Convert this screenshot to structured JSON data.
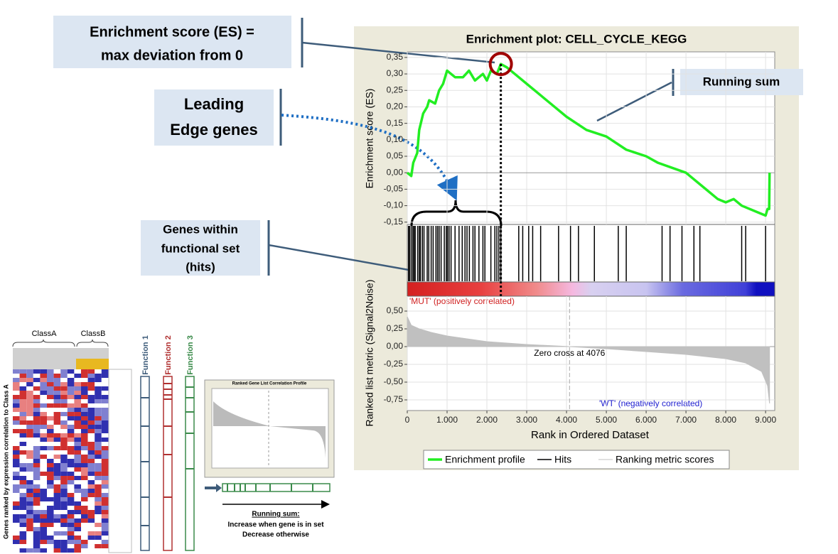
{
  "annotations": {
    "es_box": [
      "Enrichment score (ES) =",
      "max deviation from 0"
    ],
    "leading_edge_box": [
      "Leading",
      "Edge genes"
    ],
    "hits_box": [
      "Genes within",
      "functional set",
      "(hits)"
    ],
    "running_sum_box": "Running sum"
  },
  "chart_data": {
    "type": "line",
    "title": "Enrichment plot: CELL_CYCLE_KEGG",
    "x_label": "Rank in Ordered Dataset",
    "xlim": [
      0,
      9230
    ],
    "xticks": [
      0,
      {
        "value": 1000,
        "label": "1.000"
      },
      {
        "value": 2000,
        "label": "2.000"
      },
      {
        "value": 3000,
        "label": "3.000"
      },
      {
        "value": 4000,
        "label": "4.000"
      },
      {
        "value": 5000,
        "label": "5.000"
      },
      {
        "value": 6000,
        "label": "6.000"
      },
      {
        "value": 7000,
        "label": "7.000"
      },
      {
        "value": 8000,
        "label": "8.000"
      },
      {
        "value": 9000,
        "label": "9.000"
      }
    ],
    "grid": true,
    "es_panel": {
      "y_label": "Enrichment score (ES)",
      "ylim": [
        -0.157,
        0.367
      ],
      "yticks": [
        {
          "value": 0.35,
          "label": "0,35"
        },
        {
          "value": 0.3,
          "label": "0,30"
        },
        {
          "value": 0.25,
          "label": "0,25"
        },
        {
          "value": 0.2,
          "label": "0,20"
        },
        {
          "value": 0.15,
          "label": "0,15"
        },
        {
          "value": 0.1,
          "label": "0,10"
        },
        {
          "value": 0.05,
          "label": "0,05"
        },
        {
          "value": 0,
          "label": "0,00"
        },
        {
          "value": -0.05,
          "label": "-0,05"
        },
        {
          "value": -0.1,
          "label": "-0,10"
        },
        {
          "value": -0.15,
          "label": "-0,15"
        }
      ],
      "series": [
        {
          "name": "Enrichment profile",
          "color": "#22ee22",
          "x": [
            0,
            100,
            150,
            250,
            300,
            400,
            500,
            550,
            700,
            800,
            900,
            1000,
            1200,
            1400,
            1550,
            1700,
            1900,
            2000,
            2100,
            2250,
            2350,
            2500,
            2700,
            3000,
            3500,
            4000,
            4500,
            5000,
            5500,
            6000,
            6300,
            7000,
            7500,
            7800,
            8000,
            8200,
            8400,
            8800,
            9000,
            9050,
            9090,
            9100
          ],
          "values": [
            0,
            -0.01,
            0.03,
            0.06,
            0.13,
            0.18,
            0.2,
            0.22,
            0.21,
            0.25,
            0.27,
            0.31,
            0.29,
            0.29,
            0.31,
            0.28,
            0.3,
            0.28,
            0.31,
            0.3,
            0.33,
            0.32,
            0.3,
            0.27,
            0.22,
            0.17,
            0.13,
            0.11,
            0.07,
            0.05,
            0.03,
            0,
            -0.05,
            -0.08,
            -0.09,
            -0.08,
            -0.1,
            -0.12,
            -0.13,
            -0.11,
            -0.11,
            0
          ]
        }
      ]
    },
    "hits": {
      "name": "Hits",
      "color": "#000000",
      "x": [
        30,
        60,
        100,
        140,
        170,
        200,
        260,
        300,
        330,
        380,
        420,
        500,
        540,
        600,
        650,
        720,
        760,
        800,
        850,
        930,
        980,
        1010,
        1050,
        1100,
        1200,
        1300,
        1380,
        1450,
        1500,
        1560,
        1650,
        1700,
        1800,
        1900,
        1950,
        2100,
        2200,
        2250,
        2300,
        2350,
        2800,
        2900,
        3050,
        3150,
        3350,
        3800,
        4100,
        4300,
        4700,
        5300,
        5500,
        6400,
        6600,
        6900,
        7200,
        7350,
        8400,
        8500,
        9000
      ]
    },
    "metric_panel": {
      "y_label": "Ranked list metric (Signal2Noise)",
      "ylim": [
        -0.9,
        0.71
      ],
      "yticks": [
        {
          "value": 0.5,
          "label": "0,50"
        },
        {
          "value": 0.25,
          "label": "0,25"
        },
        {
          "value": 0,
          "label": "0,00"
        },
        {
          "value": -0.25,
          "label": "-0,25"
        },
        {
          "value": -0.5,
          "label": "-0,50"
        },
        {
          "value": -0.75,
          "label": "-0,75"
        }
      ],
      "series": [
        {
          "name": "Ranking metric scores",
          "color": "#c0c0c0",
          "x": [
            0,
            100,
            300,
            600,
            1000,
            2000,
            3000,
            4076,
            5000,
            6000,
            7000,
            8000,
            8500,
            8900,
            9050,
            9100
          ],
          "values": [
            0.42,
            0.3,
            0.25,
            0.2,
            0.15,
            0.07,
            0.03,
            0,
            -0.03,
            -0.07,
            -0.11,
            -0.17,
            -0.23,
            -0.35,
            -0.55,
            -0.8
          ]
        }
      ]
    },
    "zero_cross": {
      "value": 4076,
      "label": "Zero cross at 4076"
    },
    "pos_label": "'MUT' (positively correlated)",
    "neg_label": "'WT' (negatively correlated)"
  },
  "illustration": {
    "class_labels": [
      "ClassA",
      "ClassB"
    ],
    "y_label": "Genes ranked by expression correlation to Class A",
    "functions": [
      "Function 1",
      "Function 2",
      "Function 3"
    ],
    "mini_title": "Ranked Gene List Correlation Profile",
    "running_sum_title": "Running sum:",
    "running_sum_lines": [
      "Increase when gene is in set",
      "Decrease otherwise"
    ]
  }
}
